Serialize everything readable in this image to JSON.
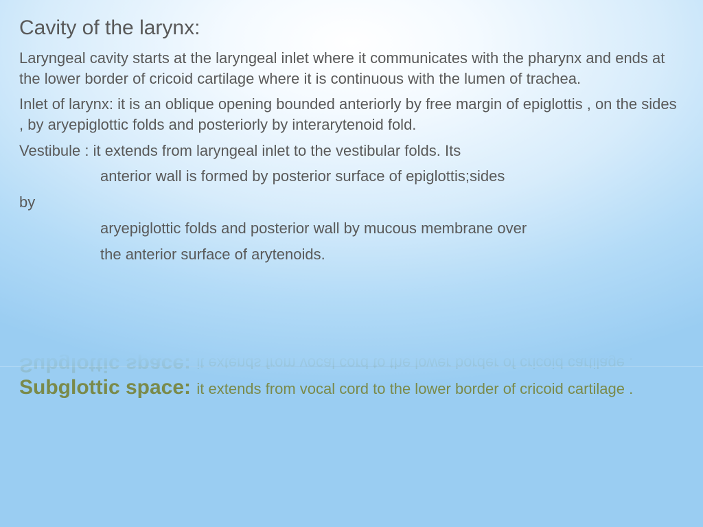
{
  "title": "Cavity of the larynx:",
  "para1": "Laryngeal cavity starts at the laryngeal inlet where it communicates with the pharynx and ends at the lower border of cricoid cartilage where it is continuous with the lumen of trachea.",
  "para2": "Inlet of larynx: it is an oblique opening bounded anteriorly by free margin of epiglottis , on the sides , by aryepiglottic folds and posteriorly by interarytenoid fold.",
  "para3": "Vestibule : it extends from laryngeal inlet to the vestibular folds. Its",
  "para4a": "anterior wall is formed by posterior surface of epiglottis;sides",
  "para4b": "by",
  "para5": "aryepiglottic folds and posterior wall by mucous membrane over",
  "para6": "the anterior surface of arytenoids.",
  "sub_title": "Subglottic space: ",
  "sub_body": "it extends from vocal cord to the lower border of cricoid cartilage .",
  "colors": {
    "text": "#595959",
    "accent": "#7a8a4a",
    "bg_inner": "#ffffff",
    "bg_outer": "#9acdf2"
  },
  "fonts": {
    "body_family": "Verdana",
    "accent_family": "Trebuchet MS",
    "title_size_pt": 24,
    "body_size_pt": 17,
    "sub_title_size_pt": 24,
    "sub_body_size_pt": 17
  }
}
